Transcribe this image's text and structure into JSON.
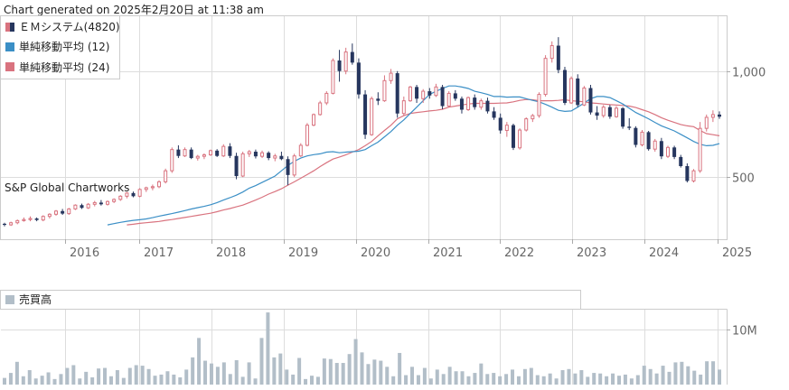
{
  "header": {
    "generated": "Chart generated on 2025年2月20日 at 11:38 am"
  },
  "watermark": "S&P Global Chartworks",
  "colors": {
    "up": "#d9737f",
    "down": "#26365e",
    "ma12": "#3b8fc6",
    "ma24": "#d9737f",
    "volume": "#b2bec8",
    "grid": "#dddddd"
  },
  "chart_data": [
    {
      "type": "candlestick",
      "legend": [
        {
          "label": "ＥＭシステム(4820)",
          "color": "#26365e"
        },
        {
          "label": "単純移動平均 (12)",
          "color": "#3b8fc6"
        },
        {
          "label": "単純移動平均 (24)",
          "color": "#d9737f"
        }
      ],
      "x_ticks": [
        "2016",
        "2017",
        "2018",
        "2019",
        "2020",
        "2021",
        "2022",
        "2023",
        "2024",
        "2025"
      ],
      "y_ticks": [
        500,
        1000
      ],
      "y_tick_labels": [
        "500",
        "1,000"
      ],
      "ylim": [
        220,
        1250
      ],
      "candles": [
        {
          "o": 280,
          "h": 285,
          "l": 268,
          "c": 275
        },
        {
          "o": 275,
          "h": 290,
          "l": 270,
          "c": 285
        },
        {
          "o": 285,
          "h": 300,
          "l": 278,
          "c": 295
        },
        {
          "o": 295,
          "h": 310,
          "l": 290,
          "c": 300
        },
        {
          "o": 300,
          "h": 315,
          "l": 292,
          "c": 305
        },
        {
          "o": 305,
          "h": 310,
          "l": 292,
          "c": 298
        },
        {
          "o": 298,
          "h": 320,
          "l": 292,
          "c": 315
        },
        {
          "o": 315,
          "h": 330,
          "l": 305,
          "c": 325
        },
        {
          "o": 325,
          "h": 345,
          "l": 318,
          "c": 340
        },
        {
          "o": 340,
          "h": 350,
          "l": 322,
          "c": 328
        },
        {
          "o": 328,
          "h": 355,
          "l": 322,
          "c": 350
        },
        {
          "o": 350,
          "h": 372,
          "l": 345,
          "c": 368
        },
        {
          "o": 368,
          "h": 375,
          "l": 350,
          "c": 355
        },
        {
          "o": 355,
          "h": 378,
          "l": 350,
          "c": 372
        },
        {
          "o": 372,
          "h": 388,
          "l": 362,
          "c": 380
        },
        {
          "o": 380,
          "h": 392,
          "l": 366,
          "c": 372
        },
        {
          "o": 372,
          "h": 390,
          "l": 366,
          "c": 385
        },
        {
          "o": 385,
          "h": 400,
          "l": 378,
          "c": 395
        },
        {
          "o": 395,
          "h": 415,
          "l": 388,
          "c": 410
        },
        {
          "o": 410,
          "h": 430,
          "l": 400,
          "c": 425
        },
        {
          "o": 425,
          "h": 432,
          "l": 405,
          "c": 410
        },
        {
          "o": 410,
          "h": 448,
          "l": 405,
          "c": 442
        },
        {
          "o": 442,
          "h": 455,
          "l": 430,
          "c": 450
        },
        {
          "o": 450,
          "h": 465,
          "l": 438,
          "c": 455
        },
        {
          "o": 455,
          "h": 485,
          "l": 448,
          "c": 478
        },
        {
          "o": 478,
          "h": 540,
          "l": 470,
          "c": 530
        },
        {
          "o": 530,
          "h": 640,
          "l": 520,
          "c": 630
        },
        {
          "o": 630,
          "h": 650,
          "l": 590,
          "c": 600
        },
        {
          "o": 600,
          "h": 640,
          "l": 595,
          "c": 630
        },
        {
          "o": 630,
          "h": 640,
          "l": 585,
          "c": 590
        },
        {
          "o": 590,
          "h": 605,
          "l": 578,
          "c": 598
        },
        {
          "o": 598,
          "h": 612,
          "l": 585,
          "c": 605
        },
        {
          "o": 605,
          "h": 630,
          "l": 600,
          "c": 625
        },
        {
          "o": 625,
          "h": 632,
          "l": 595,
          "c": 600
        },
        {
          "o": 600,
          "h": 655,
          "l": 595,
          "c": 645
        },
        {
          "o": 645,
          "h": 660,
          "l": 590,
          "c": 600
        },
        {
          "o": 600,
          "h": 615,
          "l": 490,
          "c": 505
        },
        {
          "o": 505,
          "h": 620,
          "l": 500,
          "c": 610
        },
        {
          "o": 610,
          "h": 628,
          "l": 595,
          "c": 620
        },
        {
          "o": 620,
          "h": 630,
          "l": 588,
          "c": 598
        },
        {
          "o": 598,
          "h": 625,
          "l": 590,
          "c": 615
        },
        {
          "o": 615,
          "h": 622,
          "l": 580,
          "c": 590
        },
        {
          "o": 590,
          "h": 610,
          "l": 575,
          "c": 600
        },
        {
          "o": 600,
          "h": 620,
          "l": 580,
          "c": 585
        },
        {
          "o": 585,
          "h": 598,
          "l": 462,
          "c": 510
        },
        {
          "o": 510,
          "h": 610,
          "l": 500,
          "c": 600
        },
        {
          "o": 600,
          "h": 660,
          "l": 595,
          "c": 650
        },
        {
          "o": 650,
          "h": 755,
          "l": 645,
          "c": 745
        },
        {
          "o": 745,
          "h": 800,
          "l": 740,
          "c": 795
        },
        {
          "o": 795,
          "h": 860,
          "l": 790,
          "c": 850
        },
        {
          "o": 850,
          "h": 905,
          "l": 840,
          "c": 895
        },
        {
          "o": 895,
          "h": 1060,
          "l": 890,
          "c": 1050
        },
        {
          "o": 1050,
          "h": 1100,
          "l": 950,
          "c": 1000
        },
        {
          "o": 1000,
          "h": 1110,
          "l": 985,
          "c": 1090
        },
        {
          "o": 1090,
          "h": 1130,
          "l": 1030,
          "c": 1040
        },
        {
          "o": 1040,
          "h": 1060,
          "l": 870,
          "c": 890
        },
        {
          "o": 890,
          "h": 910,
          "l": 680,
          "c": 700
        },
        {
          "o": 700,
          "h": 880,
          "l": 695,
          "c": 870
        },
        {
          "o": 870,
          "h": 900,
          "l": 840,
          "c": 860
        },
        {
          "o": 860,
          "h": 980,
          "l": 855,
          "c": 955
        },
        {
          "o": 955,
          "h": 1010,
          "l": 940,
          "c": 990
        },
        {
          "o": 990,
          "h": 1000,
          "l": 780,
          "c": 800
        },
        {
          "o": 800,
          "h": 880,
          "l": 790,
          "c": 860
        },
        {
          "o": 860,
          "h": 930,
          "l": 855,
          "c": 925
        },
        {
          "o": 925,
          "h": 935,
          "l": 850,
          "c": 870
        },
        {
          "o": 870,
          "h": 915,
          "l": 850,
          "c": 905
        },
        {
          "o": 905,
          "h": 920,
          "l": 870,
          "c": 885
        },
        {
          "o": 885,
          "h": 940,
          "l": 878,
          "c": 925
        },
        {
          "o": 925,
          "h": 935,
          "l": 820,
          "c": 835
        },
        {
          "o": 835,
          "h": 905,
          "l": 830,
          "c": 895
        },
        {
          "o": 895,
          "h": 910,
          "l": 860,
          "c": 870
        },
        {
          "o": 870,
          "h": 880,
          "l": 800,
          "c": 818
        },
        {
          "o": 818,
          "h": 880,
          "l": 812,
          "c": 875
        },
        {
          "o": 875,
          "h": 890,
          "l": 818,
          "c": 830
        },
        {
          "o": 830,
          "h": 870,
          "l": 818,
          "c": 860
        },
        {
          "o": 860,
          "h": 875,
          "l": 800,
          "c": 810
        },
        {
          "o": 810,
          "h": 830,
          "l": 770,
          "c": 780
        },
        {
          "o": 780,
          "h": 800,
          "l": 705,
          "c": 720
        },
        {
          "o": 720,
          "h": 760,
          "l": 690,
          "c": 745
        },
        {
          "o": 745,
          "h": 752,
          "l": 628,
          "c": 638
        },
        {
          "o": 638,
          "h": 730,
          "l": 630,
          "c": 722
        },
        {
          "o": 722,
          "h": 782,
          "l": 715,
          "c": 775
        },
        {
          "o": 775,
          "h": 798,
          "l": 760,
          "c": 790
        },
        {
          "o": 790,
          "h": 900,
          "l": 780,
          "c": 890
        },
        {
          "o": 890,
          "h": 1075,
          "l": 880,
          "c": 1060
        },
        {
          "o": 1060,
          "h": 1140,
          "l": 1040,
          "c": 1120
        },
        {
          "o": 1120,
          "h": 1160,
          "l": 990,
          "c": 1005
        },
        {
          "o": 1005,
          "h": 1020,
          "l": 840,
          "c": 850
        },
        {
          "o": 850,
          "h": 975,
          "l": 845,
          "c": 965
        },
        {
          "o": 965,
          "h": 985,
          "l": 830,
          "c": 840
        },
        {
          "o": 840,
          "h": 930,
          "l": 835,
          "c": 920
        },
        {
          "o": 920,
          "h": 935,
          "l": 795,
          "c": 805
        },
        {
          "o": 805,
          "h": 835,
          "l": 770,
          "c": 790
        },
        {
          "o": 790,
          "h": 840,
          "l": 780,
          "c": 830
        },
        {
          "o": 830,
          "h": 840,
          "l": 775,
          "c": 785
        },
        {
          "o": 785,
          "h": 835,
          "l": 780,
          "c": 825
        },
        {
          "o": 825,
          "h": 830,
          "l": 728,
          "c": 738
        },
        {
          "o": 738,
          "h": 778,
          "l": 722,
          "c": 732
        },
        {
          "o": 732,
          "h": 740,
          "l": 640,
          "c": 652
        },
        {
          "o": 652,
          "h": 722,
          "l": 645,
          "c": 712
        },
        {
          "o": 712,
          "h": 718,
          "l": 625,
          "c": 632
        },
        {
          "o": 632,
          "h": 680,
          "l": 620,
          "c": 670
        },
        {
          "o": 670,
          "h": 685,
          "l": 585,
          "c": 598
        },
        {
          "o": 598,
          "h": 648,
          "l": 590,
          "c": 640
        },
        {
          "o": 640,
          "h": 648,
          "l": 585,
          "c": 595
        },
        {
          "o": 595,
          "h": 605,
          "l": 545,
          "c": 552
        },
        {
          "o": 552,
          "h": 565,
          "l": 475,
          "c": 482
        },
        {
          "o": 482,
          "h": 538,
          "l": 475,
          "c": 530
        },
        {
          "o": 530,
          "h": 760,
          "l": 520,
          "c": 730
        },
        {
          "o": 730,
          "h": 795,
          "l": 715,
          "c": 782
        },
        {
          "o": 782,
          "h": 815,
          "l": 760,
          "c": 795
        },
        {
          "o": 795,
          "h": 810,
          "l": 775,
          "c": 785
        }
      ],
      "ma12": [
        275,
        281,
        287,
        292,
        296,
        299,
        303,
        309,
        316,
        322,
        328,
        335,
        342,
        350,
        356,
        362,
        370,
        380,
        392,
        403,
        415,
        430,
        448,
        460,
        475,
        490,
        505,
        530,
        555,
        575,
        590,
        600,
        606,
        610,
        618,
        620,
        615,
        618,
        620,
        622,
        630,
        648,
        665,
        690,
        715,
        745,
        770,
        800,
        830,
        860,
        890,
        905,
        918,
        930,
        930,
        925,
        918,
        905,
        898,
        890,
        880,
        880,
        877,
        878,
        878,
        870,
        862,
        855,
        843,
        830,
        815,
        810,
        812,
        830,
        850,
        870,
        880,
        880,
        875,
        860,
        845,
        825,
        805,
        790,
        775,
        758,
        742,
        730,
        718,
        702,
        685,
        668,
        655,
        648,
        650,
        658
      ],
      "ma24": [
        275,
        278,
        282,
        285,
        288,
        291,
        296,
        300,
        305,
        310,
        315,
        320,
        325,
        330,
        337,
        345,
        352,
        360,
        368,
        380,
        392,
        405,
        420,
        432,
        445,
        462,
        478,
        495,
        512,
        530,
        550,
        568,
        585,
        595,
        605,
        618,
        630,
        648,
        668,
        695,
        720,
        745,
        775,
        790,
        800,
        805,
        808,
        812,
        815,
        820,
        830,
        835,
        840,
        845,
        848,
        848,
        848,
        848,
        849,
        850,
        855,
        862,
        866,
        865,
        860,
        860,
        860,
        862,
        865,
        860,
        858,
        855,
        850,
        848,
        845,
        842,
        840,
        838,
        835,
        828,
        818,
        808,
        795,
        780,
        768,
        758,
        748,
        742,
        738,
        720,
        705,
        700,
        695
      ]
    },
    {
      "type": "bar",
      "legend": [
        {
          "label": "売買高",
          "color": "#b2bec8"
        }
      ],
      "y_ticks": [
        10
      ],
      "y_tick_labels": [
        "10M"
      ],
      "ylim": [
        0,
        13.5
      ],
      "unit": "M",
      "values": [
        1.2,
        2.1,
        4.1,
        1.5,
        2.6,
        1.1,
        1.6,
        2.2,
        1.0,
        1.9,
        3.0,
        3.5,
        1.1,
        2.3,
        1.3,
        2.9,
        3.0,
        1.5,
        2.6,
        1.2,
        3.0,
        3.5,
        3.4,
        2.8,
        1.6,
        1.8,
        2.4,
        1.8,
        1.3,
        2.7,
        4.9,
        8.4,
        4.3,
        3.8,
        3.2,
        4.0,
        1.9,
        4.4,
        1.4,
        4.0,
        1.1,
        8.4,
        13.0,
        4.9,
        5.6,
        2.7,
        1.8,
        4.8,
        1.0,
        1.6,
        1.4,
        4.7,
        4.6,
        3.9,
        3.9,
        5.5,
        8.2,
        5.8,
        3.7,
        4.5,
        4.3,
        3.2,
        1.5,
        5.7,
        1.7,
        3.2,
        1.7,
        3.0,
        1.1,
        2.7,
        1.9,
        3.2,
        2.4,
        2.4,
        1.5,
        2.1,
        3.8,
        1.9,
        2.1,
        1.5,
        1.9,
        2.7,
        1.5,
        2.8,
        3.0,
        1.7,
        1.5,
        2.0,
        1.1,
        2.6,
        2.8,
        2.0,
        2.6,
        1.4,
        2.1,
        2.0,
        1.5,
        2.0,
        1.6,
        1.8,
        1.1,
        1.7,
        3.4,
        2.8,
        2.0,
        3.4,
        2.3,
        4.0,
        4.1,
        3.3,
        2.5,
        1.8,
        4.2,
        4.2,
        2.7
      ]
    }
  ]
}
